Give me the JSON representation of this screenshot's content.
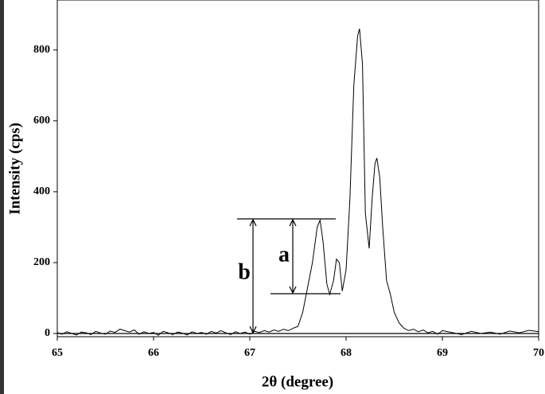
{
  "chart_data": {
    "type": "line",
    "x_label": "2θ (degree)",
    "y_label": "Intensity (cps)",
    "annotations": [
      "a",
      "b"
    ],
    "color": "#000000",
    "xlim": [
      65,
      70
    ],
    "ylim": [
      -9,
      941
    ],
    "xticks": [
      65,
      66,
      67,
      68,
      69,
      70
    ],
    "yticks": [
      0,
      200,
      400,
      600,
      800
    ],
    "x": [
      65.0,
      65.05,
      65.1,
      65.15,
      65.2,
      65.25,
      65.3,
      65.35,
      65.4,
      65.45,
      65.5,
      65.55,
      65.6,
      65.65,
      65.7,
      65.75,
      65.8,
      65.85,
      65.9,
      65.95,
      66.0,
      66.05,
      66.1,
      66.15,
      66.2,
      66.25,
      66.3,
      66.35,
      66.4,
      66.45,
      66.5,
      66.55,
      66.6,
      66.65,
      66.7,
      66.75,
      66.8,
      66.85,
      66.9,
      66.95,
      67.0,
      67.05,
      67.1,
      67.15,
      67.2,
      67.25,
      67.3,
      67.35,
      67.4,
      67.45,
      67.5,
      67.55,
      67.6,
      67.65,
      67.7,
      67.73,
      67.76,
      67.8,
      67.83,
      67.87,
      67.9,
      67.93,
      67.96,
      68.0,
      68.04,
      68.08,
      68.12,
      68.14,
      68.17,
      68.2,
      68.24,
      68.27,
      68.3,
      68.32,
      68.35,
      68.38,
      68.42,
      68.46,
      68.5,
      68.55,
      68.6,
      68.65,
      68.7,
      68.75,
      68.8,
      68.85,
      68.9,
      68.95,
      69.0,
      69.1,
      69.2,
      69.3,
      69.4,
      69.5,
      69.6,
      69.7,
      69.8,
      69.9,
      70.0
    ],
    "values": [
      3,
      -2,
      5,
      0,
      -4,
      4,
      2,
      -3,
      6,
      1,
      -2,
      7,
      3,
      12,
      8,
      4,
      10,
      -2,
      5,
      0,
      3,
      -5,
      6,
      2,
      -3,
      4,
      1,
      -4,
      5,
      0,
      3,
      -2,
      6,
      1,
      8,
      2,
      -3,
      5,
      0,
      4,
      -2,
      6,
      3,
      8,
      4,
      10,
      6,
      12,
      8,
      15,
      20,
      60,
      130,
      200,
      300,
      320,
      260,
      140,
      110,
      150,
      210,
      200,
      120,
      180,
      380,
      700,
      840,
      860,
      760,
      340,
      240,
      380,
      480,
      495,
      440,
      300,
      150,
      110,
      60,
      30,
      15,
      8,
      12,
      5,
      10,
      2,
      6,
      -2,
      8,
      3,
      -3,
      6,
      0,
      4,
      -2,
      7,
      2,
      9,
      5
    ]
  }
}
